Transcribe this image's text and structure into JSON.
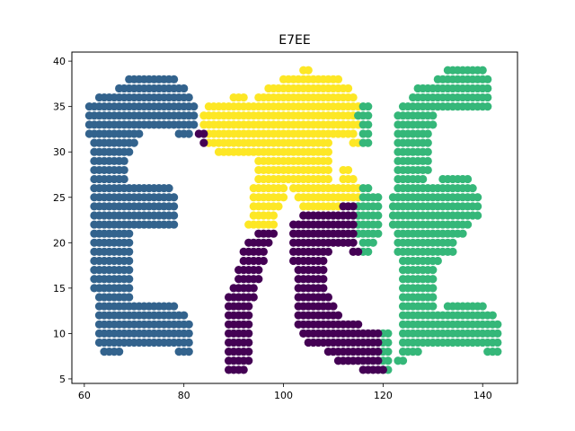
{
  "chart_data": {
    "type": "scatter",
    "title": "E7EE",
    "xlabel": "",
    "ylabel": "",
    "xlim": [
      57.5,
      147.0
    ],
    "ylim": [
      4.5,
      41.0
    ],
    "x_ticks": [
      60,
      80,
      100,
      120,
      140
    ],
    "y_ticks": [
      5,
      10,
      15,
      20,
      25,
      30,
      35,
      40
    ],
    "grid": false,
    "legend": "none",
    "series": [
      {
        "color": "#33638d",
        "rows": [
          {
            "y": 38,
            "x": [
              [
                69,
                78
              ]
            ]
          },
          {
            "y": 37,
            "x": [
              [
                67,
                80
              ]
            ]
          },
          {
            "y": 36,
            "x": [
              [
                63,
                81
              ]
            ]
          },
          {
            "y": 35,
            "x": [
              [
                61,
                82
              ]
            ]
          },
          {
            "y": 34,
            "x": [
              [
                61,
                82
              ]
            ]
          },
          {
            "y": 33,
            "x": [
              [
                61,
                82
              ]
            ]
          },
          {
            "y": 32,
            "x": [
              [
                61,
                71
              ],
              [
                79,
                81
              ]
            ]
          },
          {
            "y": 31,
            "x": [
              [
                62,
                70
              ]
            ]
          },
          {
            "y": 30,
            "x": [
              [
                62,
                69
              ]
            ]
          },
          {
            "y": 29,
            "x": [
              [
                62,
                68
              ]
            ]
          },
          {
            "y": 28,
            "x": [
              [
                62,
                68
              ]
            ]
          },
          {
            "y": 27,
            "x": [
              [
                62,
                68
              ]
            ]
          },
          {
            "y": 26,
            "x": [
              [
                62,
                77
              ]
            ]
          },
          {
            "y": 25,
            "x": [
              [
                62,
                78
              ]
            ]
          },
          {
            "y": 24,
            "x": [
              [
                62,
                78
              ]
            ]
          },
          {
            "y": 23,
            "x": [
              [
                62,
                78
              ]
            ]
          },
          {
            "y": 22,
            "x": [
              [
                62,
                78
              ]
            ]
          },
          {
            "y": 21,
            "x": [
              [
                62,
                69
              ]
            ]
          },
          {
            "y": 20,
            "x": [
              [
                62,
                69
              ]
            ]
          },
          {
            "y": 19,
            "x": [
              [
                62,
                69
              ]
            ]
          },
          {
            "y": 18,
            "x": [
              [
                62,
                69
              ]
            ]
          },
          {
            "y": 17,
            "x": [
              [
                62,
                69
              ]
            ]
          },
          {
            "y": 16,
            "x": [
              [
                62,
                69
              ]
            ]
          },
          {
            "y": 15,
            "x": [
              [
                62,
                69
              ]
            ]
          },
          {
            "y": 14,
            "x": [
              [
                63,
                69
              ]
            ]
          },
          {
            "y": 13,
            "x": [
              [
                63,
                78
              ]
            ]
          },
          {
            "y": 12,
            "x": [
              [
                63,
                80
              ]
            ]
          },
          {
            "y": 11,
            "x": [
              [
                63,
                81
              ]
            ]
          },
          {
            "y": 10,
            "x": [
              [
                63,
                81
              ]
            ]
          },
          {
            "y": 9,
            "x": [
              [
                63,
                81
              ]
            ]
          },
          {
            "y": 8,
            "x": [
              [
                64,
                67
              ],
              [
                79,
                81
              ]
            ]
          }
        ]
      },
      {
        "color": "#fde725",
        "rows": [
          {
            "y": 39,
            "x": [
              [
                104,
                105
              ]
            ]
          },
          {
            "y": 38,
            "x": [
              [
                100,
                111
              ]
            ]
          },
          {
            "y": 37,
            "x": [
              [
                97,
                113
              ]
            ]
          },
          {
            "y": 36,
            "x": [
              [
                90,
                92
              ],
              [
                95,
                114
              ]
            ]
          },
          {
            "y": 35,
            "x": [
              [
                85,
                115
              ]
            ]
          },
          {
            "y": 34,
            "x": [
              [
                84,
                115
              ]
            ]
          },
          {
            "y": 33,
            "x": [
              [
                84,
                115
              ]
            ]
          },
          {
            "y": 32,
            "x": [
              [
                85,
                114
              ]
            ]
          },
          {
            "y": 31,
            "x": [
              [
                85,
                109
              ],
              [
                114,
                115
              ]
            ]
          },
          {
            "y": 30,
            "x": [
              [
                87,
                109
              ]
            ]
          },
          {
            "y": 29,
            "x": [
              [
                95,
                109
              ]
            ]
          },
          {
            "y": 28,
            "x": [
              [
                95,
                109
              ],
              [
                112,
                113
              ]
            ]
          },
          {
            "y": 27,
            "x": [
              [
                95,
                109
              ],
              [
                112,
                114
              ]
            ]
          },
          {
            "y": 26,
            "x": [
              [
                94,
                100
              ],
              [
                102,
                115
              ]
            ]
          },
          {
            "y": 25,
            "x": [
              [
                94,
                100
              ],
              [
                103,
                115
              ]
            ]
          },
          {
            "y": 24,
            "x": [
              [
                94,
                99
              ],
              [
                104,
                111
              ]
            ]
          },
          {
            "y": 23,
            "x": [
              [
                94,
                98
              ]
            ]
          },
          {
            "y": 22,
            "x": [
              [
                93,
                98
              ]
            ]
          }
        ]
      },
      {
        "color": "#35b779",
        "rows": [
          {
            "y": 39,
            "x": [
              [
                133,
                140
              ]
            ]
          },
          {
            "y": 38,
            "x": [
              [
                131,
                141
              ]
            ]
          },
          {
            "y": 37,
            "x": [
              [
                127,
                141
              ]
            ]
          },
          {
            "y": 36,
            "x": [
              [
                126,
                141
              ]
            ]
          },
          {
            "y": 35,
            "x": [
              [
                116,
                117
              ],
              [
                124,
                141
              ]
            ]
          },
          {
            "y": 34,
            "x": [
              [
                115,
                117
              ],
              [
                123,
                130
              ]
            ]
          },
          {
            "y": 33,
            "x": [
              [
                116,
                117
              ],
              [
                123,
                130
              ]
            ]
          },
          {
            "y": 32,
            "x": [
              [
                116,
                117
              ],
              [
                123,
                129
              ]
            ]
          },
          {
            "y": 31,
            "x": [
              [
                116,
                117
              ],
              [
                123,
                129
              ]
            ]
          },
          {
            "y": 30,
            "x": [
              [
                123,
                129
              ]
            ]
          },
          {
            "y": 29,
            "x": [
              [
                123,
                129
              ]
            ]
          },
          {
            "y": 28,
            "x": [
              [
                123,
                129
              ]
            ]
          },
          {
            "y": 27,
            "x": [
              [
                123,
                128
              ],
              [
                132,
                137
              ]
            ]
          },
          {
            "y": 26,
            "x": [
              [
                116,
                117
              ],
              [
                123,
                138
              ]
            ]
          },
          {
            "y": 25,
            "x": [
              [
                116,
                119
              ],
              [
                122,
                139
              ]
            ]
          },
          {
            "y": 24,
            "x": [
              [
                115,
                119
              ],
              [
                122,
                139
              ]
            ]
          },
          {
            "y": 23,
            "x": [
              [
                115,
                119
              ],
              [
                122,
                139
              ]
            ]
          },
          {
            "y": 22,
            "x": [
              [
                115,
                119
              ],
              [
                122,
                137
              ]
            ]
          },
          {
            "y": 21,
            "x": [
              [
                115,
                119
              ],
              [
                123,
                136
              ]
            ]
          },
          {
            "y": 20,
            "x": [
              [
                116,
                118
              ],
              [
                123,
                134
              ]
            ]
          },
          {
            "y": 19,
            "x": [
              [
                116,
                117
              ],
              [
                123,
                134
              ]
            ]
          },
          {
            "y": 18,
            "x": [
              [
                124,
                131
              ]
            ]
          },
          {
            "y": 17,
            "x": [
              [
                124,
                130
              ]
            ]
          },
          {
            "y": 16,
            "x": [
              [
                124,
                130
              ]
            ]
          },
          {
            "y": 15,
            "x": [
              [
                124,
                130
              ]
            ]
          },
          {
            "y": 14,
            "x": [
              [
                124,
                130
              ]
            ]
          },
          {
            "y": 13,
            "x": [
              [
                124,
                130
              ],
              [
                133,
                140
              ]
            ]
          },
          {
            "y": 12,
            "x": [
              [
                124,
                142
              ]
            ]
          },
          {
            "y": 11,
            "x": [
              [
                124,
                143
              ]
            ]
          },
          {
            "y": 10,
            "x": [
              [
                120,
                121
              ],
              [
                124,
                143
              ]
            ]
          },
          {
            "y": 9,
            "x": [
              [
                120,
                121
              ],
              [
                124,
                143
              ]
            ]
          },
          {
            "y": 8,
            "x": [
              [
                119,
                121
              ],
              [
                124,
                127
              ],
              [
                141,
                143
              ]
            ]
          },
          {
            "y": 7,
            "x": [
              [
                120,
                121
              ],
              [
                123,
                124
              ]
            ]
          },
          {
            "y": 6,
            "x": [
              [
                120,
                121
              ]
            ]
          }
        ]
      },
      {
        "color": "#440154",
        "rows": [
          {
            "y": 32,
            "x": [
              [
                83,
                84
              ]
            ]
          },
          {
            "y": 31,
            "x": [
              [
                84,
                84
              ]
            ]
          },
          {
            "y": 24,
            "x": [
              [
                112,
                114
              ]
            ]
          },
          {
            "y": 23,
            "x": [
              [
                104,
                114
              ]
            ]
          },
          {
            "y": 22,
            "x": [
              [
                102,
                114
              ]
            ]
          },
          {
            "y": 21,
            "x": [
              [
                95,
                98
              ],
              [
                102,
                114
              ]
            ]
          },
          {
            "y": 20,
            "x": [
              [
                93,
                97
              ],
              [
                102,
                114
              ]
            ]
          },
          {
            "y": 19,
            "x": [
              [
                92,
                96
              ],
              [
                102,
                109
              ],
              [
                114,
                115
              ]
            ]
          },
          {
            "y": 18,
            "x": [
              [
                92,
                96
              ],
              [
                102,
                108
              ]
            ]
          },
          {
            "y": 17,
            "x": [
              [
                91,
                95
              ],
              [
                103,
                108
              ]
            ]
          },
          {
            "y": 16,
            "x": [
              [
                91,
                95
              ],
              [
                103,
                108
              ]
            ]
          },
          {
            "y": 15,
            "x": [
              [
                90,
                94
              ],
              [
                103,
                108
              ]
            ]
          },
          {
            "y": 14,
            "x": [
              [
                89,
                94
              ],
              [
                103,
                109
              ]
            ]
          },
          {
            "y": 13,
            "x": [
              [
                89,
                93
              ],
              [
                103,
                110
              ]
            ]
          },
          {
            "y": 12,
            "x": [
              [
                89,
                93
              ],
              [
                103,
                111
              ]
            ]
          },
          {
            "y": 11,
            "x": [
              [
                89,
                93
              ],
              [
                103,
                115
              ]
            ]
          },
          {
            "y": 10,
            "x": [
              [
                89,
                93
              ],
              [
                104,
                119
              ]
            ]
          },
          {
            "y": 9,
            "x": [
              [
                89,
                93
              ],
              [
                105,
                119
              ]
            ]
          },
          {
            "y": 8,
            "x": [
              [
                89,
                93
              ],
              [
                109,
                119
              ]
            ]
          },
          {
            "y": 7,
            "x": [
              [
                89,
                93
              ],
              [
                111,
                119
              ]
            ]
          },
          {
            "y": 6,
            "x": [
              [
                89,
                92
              ],
              [
                116,
                120
              ]
            ]
          }
        ]
      }
    ]
  }
}
